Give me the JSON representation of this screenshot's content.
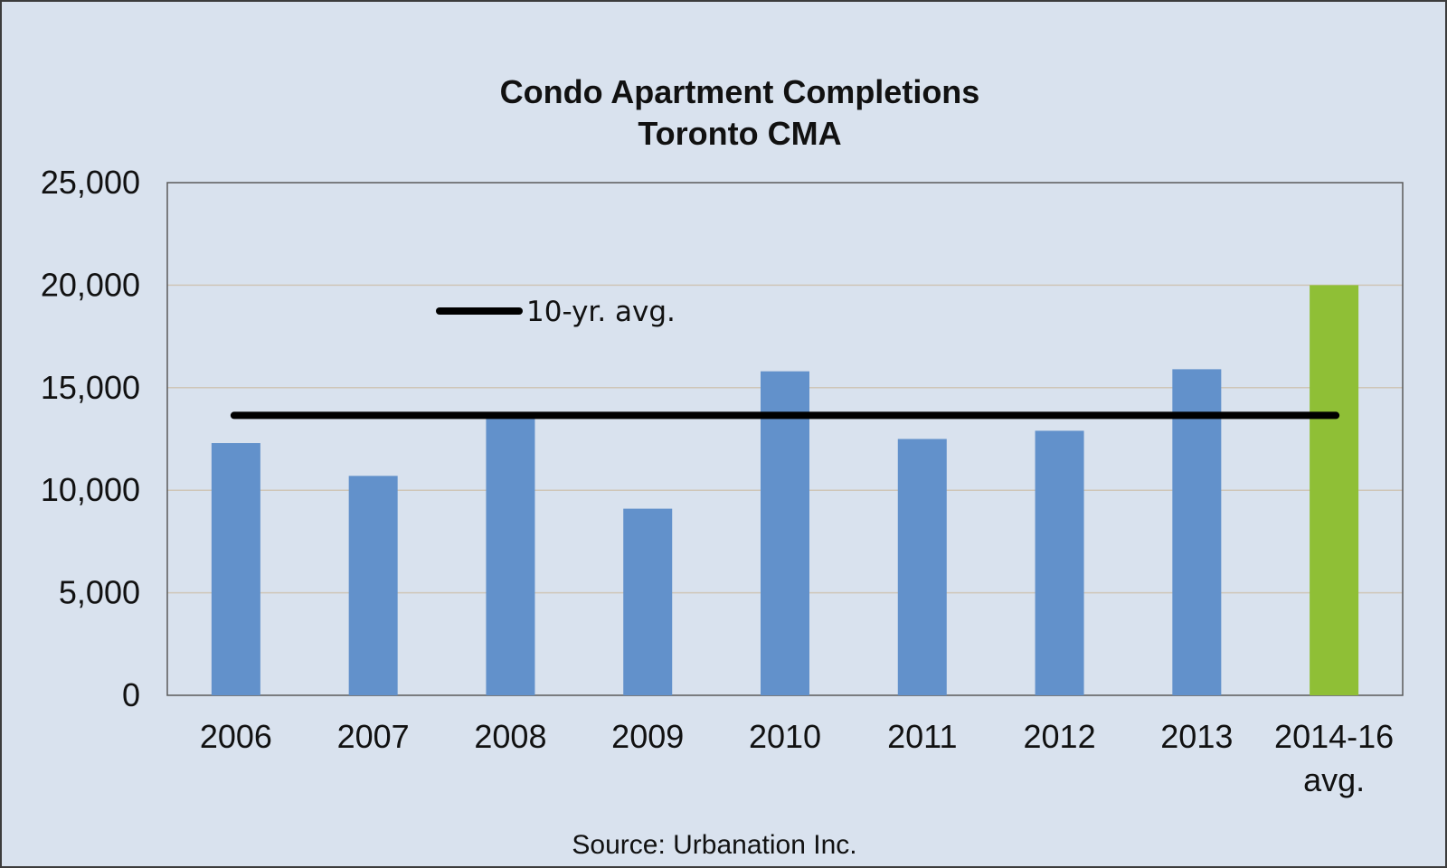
{
  "chart_data": {
    "type": "bar",
    "title": "Condo Apartment Completions",
    "subtitle": "Toronto CMA",
    "categories": [
      "2006",
      "2007",
      "2008",
      "2009",
      "2010",
      "2011",
      "2012",
      "2013",
      "2014-16 avg."
    ],
    "category_lines": [
      [
        "2006"
      ],
      [
        "2007"
      ],
      [
        "2008"
      ],
      [
        "2009"
      ],
      [
        "2010"
      ],
      [
        "2011"
      ],
      [
        "2012"
      ],
      [
        "2013"
      ],
      [
        "2014-16",
        "avg."
      ]
    ],
    "values": [
      12300,
      10700,
      13600,
      9100,
      15800,
      12500,
      12900,
      15900,
      20000
    ],
    "bar_colors": [
      "#6291cb",
      "#6291cb",
      "#6291cb",
      "#6291cb",
      "#6291cb",
      "#6291cb",
      "#6291cb",
      "#6291cb",
      "#8fbf36"
    ],
    "reference_line": {
      "label": "10-yr. avg.",
      "value": 13650,
      "color": "#000000"
    },
    "y_ticks": [
      "0",
      "5,000",
      "10,000",
      "15,000",
      "20,000",
      "25,000"
    ],
    "y_tick_values": [
      0,
      5000,
      10000,
      15000,
      20000,
      25000
    ],
    "ylim": [
      0,
      25000
    ],
    "xlabel": "",
    "ylabel": "",
    "grid": true,
    "legend_position": "top-left",
    "source": "Source: Urbanation Inc."
  },
  "colors": {
    "background": "#d9e2ee",
    "plot_background": "#d9e2ee",
    "gridline": "#cfc6b8",
    "bar": "#6291cb",
    "highlight_bar": "#8fbf36"
  }
}
